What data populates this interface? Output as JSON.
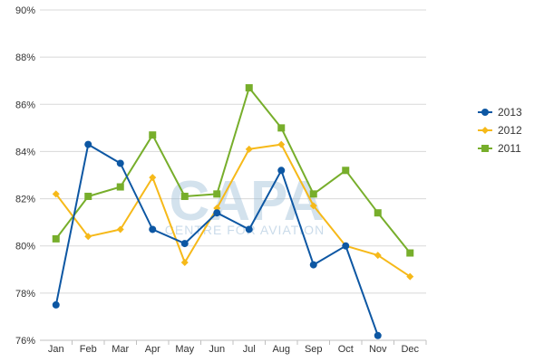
{
  "watermark": {
    "logo_text": "CAPA",
    "tagline": "CENTRE FOR AVIATION"
  },
  "chart_data": {
    "type": "line",
    "categories": [
      "Jan",
      "Feb",
      "Mar",
      "Apr",
      "May",
      "Jun",
      "Jul",
      "Aug",
      "Sep",
      "Oct",
      "Nov",
      "Dec"
    ],
    "ylim": [
      76,
      90
    ],
    "yticks": [
      76,
      78,
      80,
      82,
      84,
      86,
      88,
      90
    ],
    "ytick_labels": [
      "76%",
      "78%",
      "80%",
      "82%",
      "84%",
      "86%",
      "88%",
      "90%"
    ],
    "grid": true,
    "legend_position": "right",
    "series": [
      {
        "name": "2013",
        "color": "#0d57a3",
        "marker": "circle",
        "values": [
          77.5,
          84.3,
          83.5,
          80.7,
          80.1,
          81.4,
          80.7,
          83.2,
          79.2,
          80.0,
          76.2,
          null
        ]
      },
      {
        "name": "2012",
        "color": "#f6b919",
        "marker": "diamond",
        "values": [
          82.2,
          80.4,
          80.7,
          82.9,
          79.3,
          81.6,
          84.1,
          84.3,
          81.7,
          80.0,
          79.6,
          78.7
        ]
      },
      {
        "name": "2011",
        "color": "#77ae2b",
        "marker": "square",
        "values": [
          80.3,
          82.1,
          82.5,
          84.7,
          82.1,
          82.2,
          86.7,
          85.0,
          82.2,
          83.2,
          81.4,
          79.7
        ]
      }
    ]
  }
}
